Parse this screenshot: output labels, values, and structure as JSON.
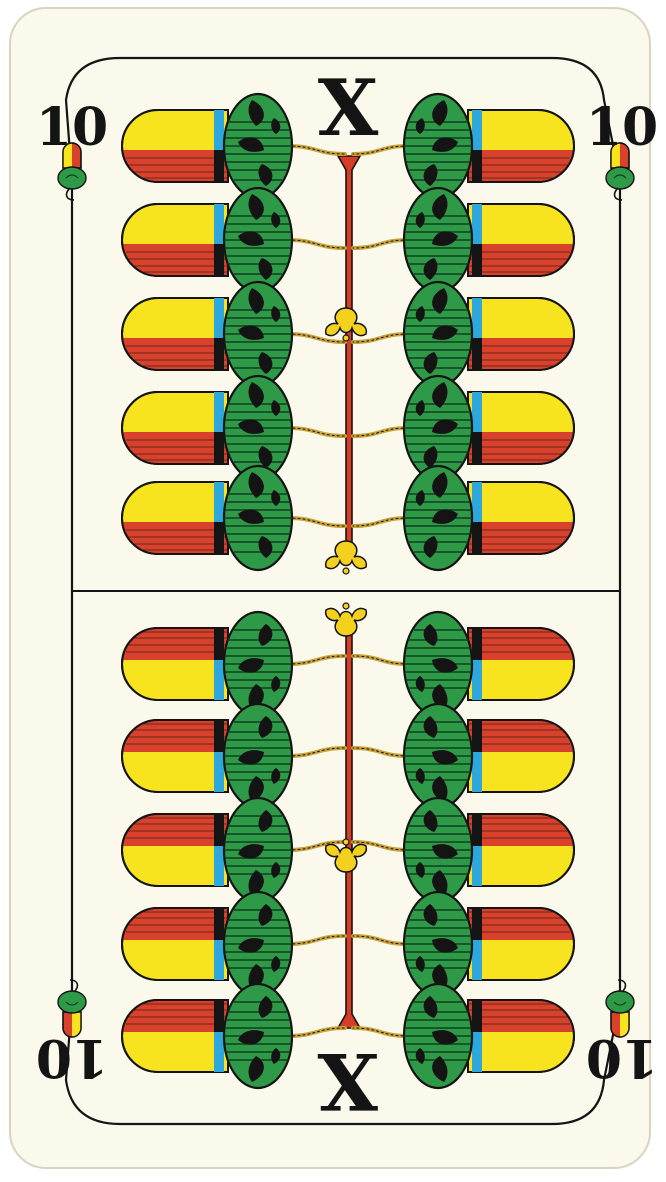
{
  "card": {
    "rank_index_top": "10",
    "rank_index_bottom": "10",
    "rank_roman_top": "X",
    "rank_roman_bottom": "X",
    "suit": "acorns",
    "pips_per_half": 10,
    "colors": {
      "card_face": "#fbf8ec",
      "page_background": "#ffffff",
      "outline": "#141414",
      "acorn_cap": "#2e9a47",
      "acorn_cap_stripes": "#0f3f1e",
      "acorn_body_yellow": "#f7e41e",
      "acorn_body_red": "#d8412b",
      "acorn_band_blue": "#2ea8dc",
      "stem_red": "#d63d24",
      "ornament_yellow": "#f4d11f",
      "twig_gold": "#c8a23a"
    }
  }
}
